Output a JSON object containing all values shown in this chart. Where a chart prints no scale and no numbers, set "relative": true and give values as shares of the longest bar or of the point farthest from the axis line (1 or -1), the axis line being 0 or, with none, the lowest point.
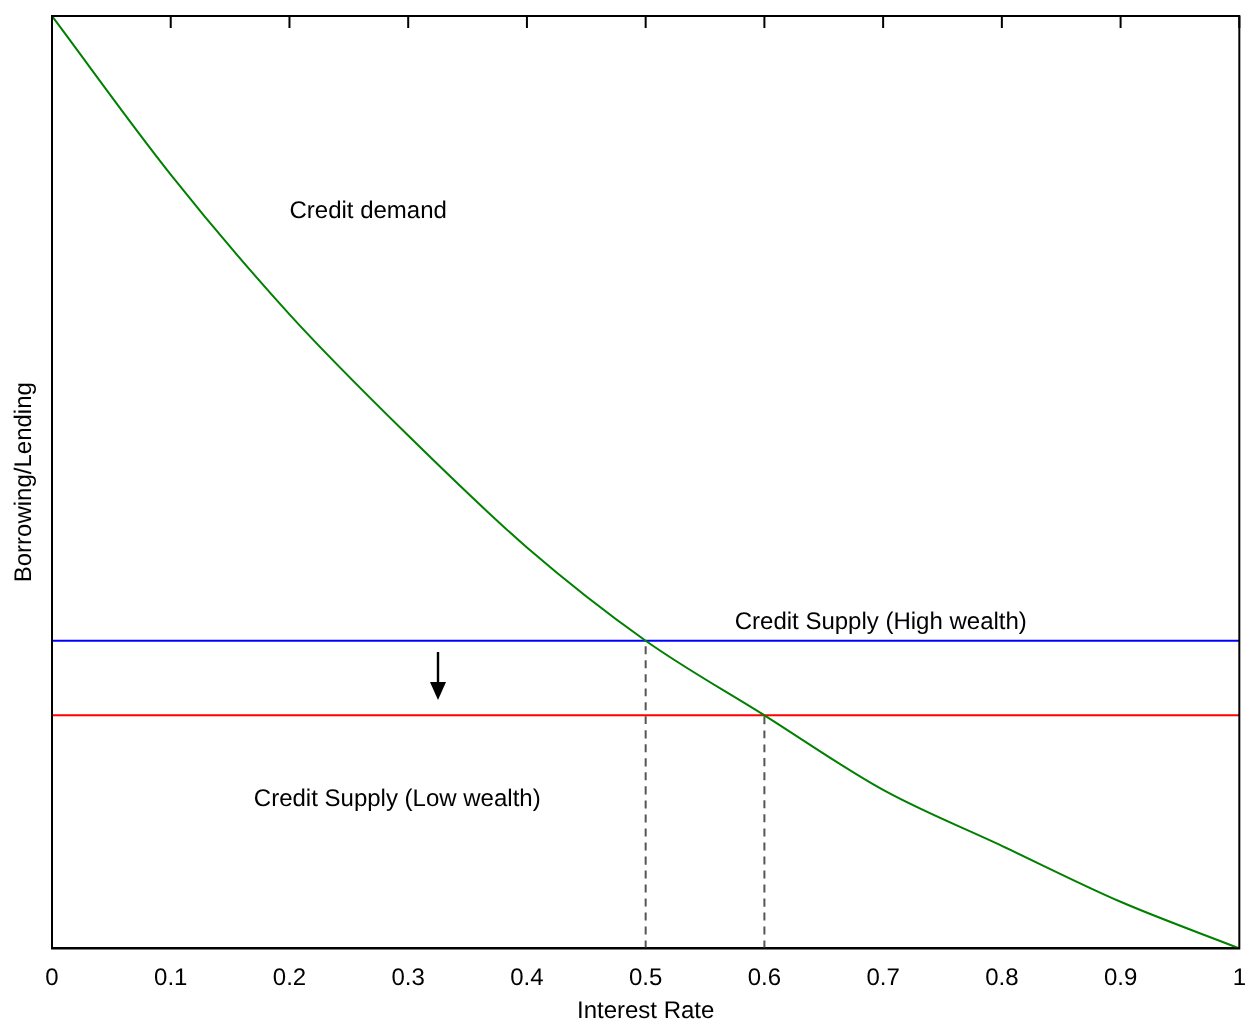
{
  "chart_data": {
    "type": "line",
    "xlabel": "Interest Rate",
    "ylabel": "Borrowing/Lending",
    "relative": true,
    "xlim": [
      0,
      1
    ],
    "xticks": [
      0,
      0.1,
      0.2,
      0.3,
      0.4,
      0.5,
      0.6,
      0.7,
      0.8,
      0.9,
      1
    ],
    "legend": false,
    "grid": false,
    "marker": "none",
    "series": [
      {
        "name": "Credit demand",
        "color": "#008000",
        "x": [
          0,
          0.1,
          0.2,
          0.3,
          0.4,
          0.5,
          0.6,
          0.7,
          0.8,
          0.9,
          1
        ],
        "values": [
          1,
          0.83,
          0.68,
          0.55,
          0.43,
          0.33,
          0.25,
          0.17,
          0.11,
          0.05,
          0
        ]
      },
      {
        "name": "Credit Supply (High wealth)",
        "color": "#0000ff",
        "x": [
          0,
          1
        ],
        "values": [
          0.33,
          0.33
        ]
      },
      {
        "name": "Credit Supply (Low wealth)",
        "color": "#ff0000",
        "x": [
          0,
          1
        ],
        "values": [
          0.25,
          0.25
        ]
      },
      {
        "color": "#555555",
        "line_style": "dashed",
        "x": [
          0.5,
          0.5
        ],
        "values": [
          0,
          0.33
        ]
      },
      {
        "color": "#555555",
        "line_style": "dashed",
        "x": [
          0.6,
          0.6
        ],
        "values": [
          0,
          0.25
        ]
      }
    ]
  }
}
